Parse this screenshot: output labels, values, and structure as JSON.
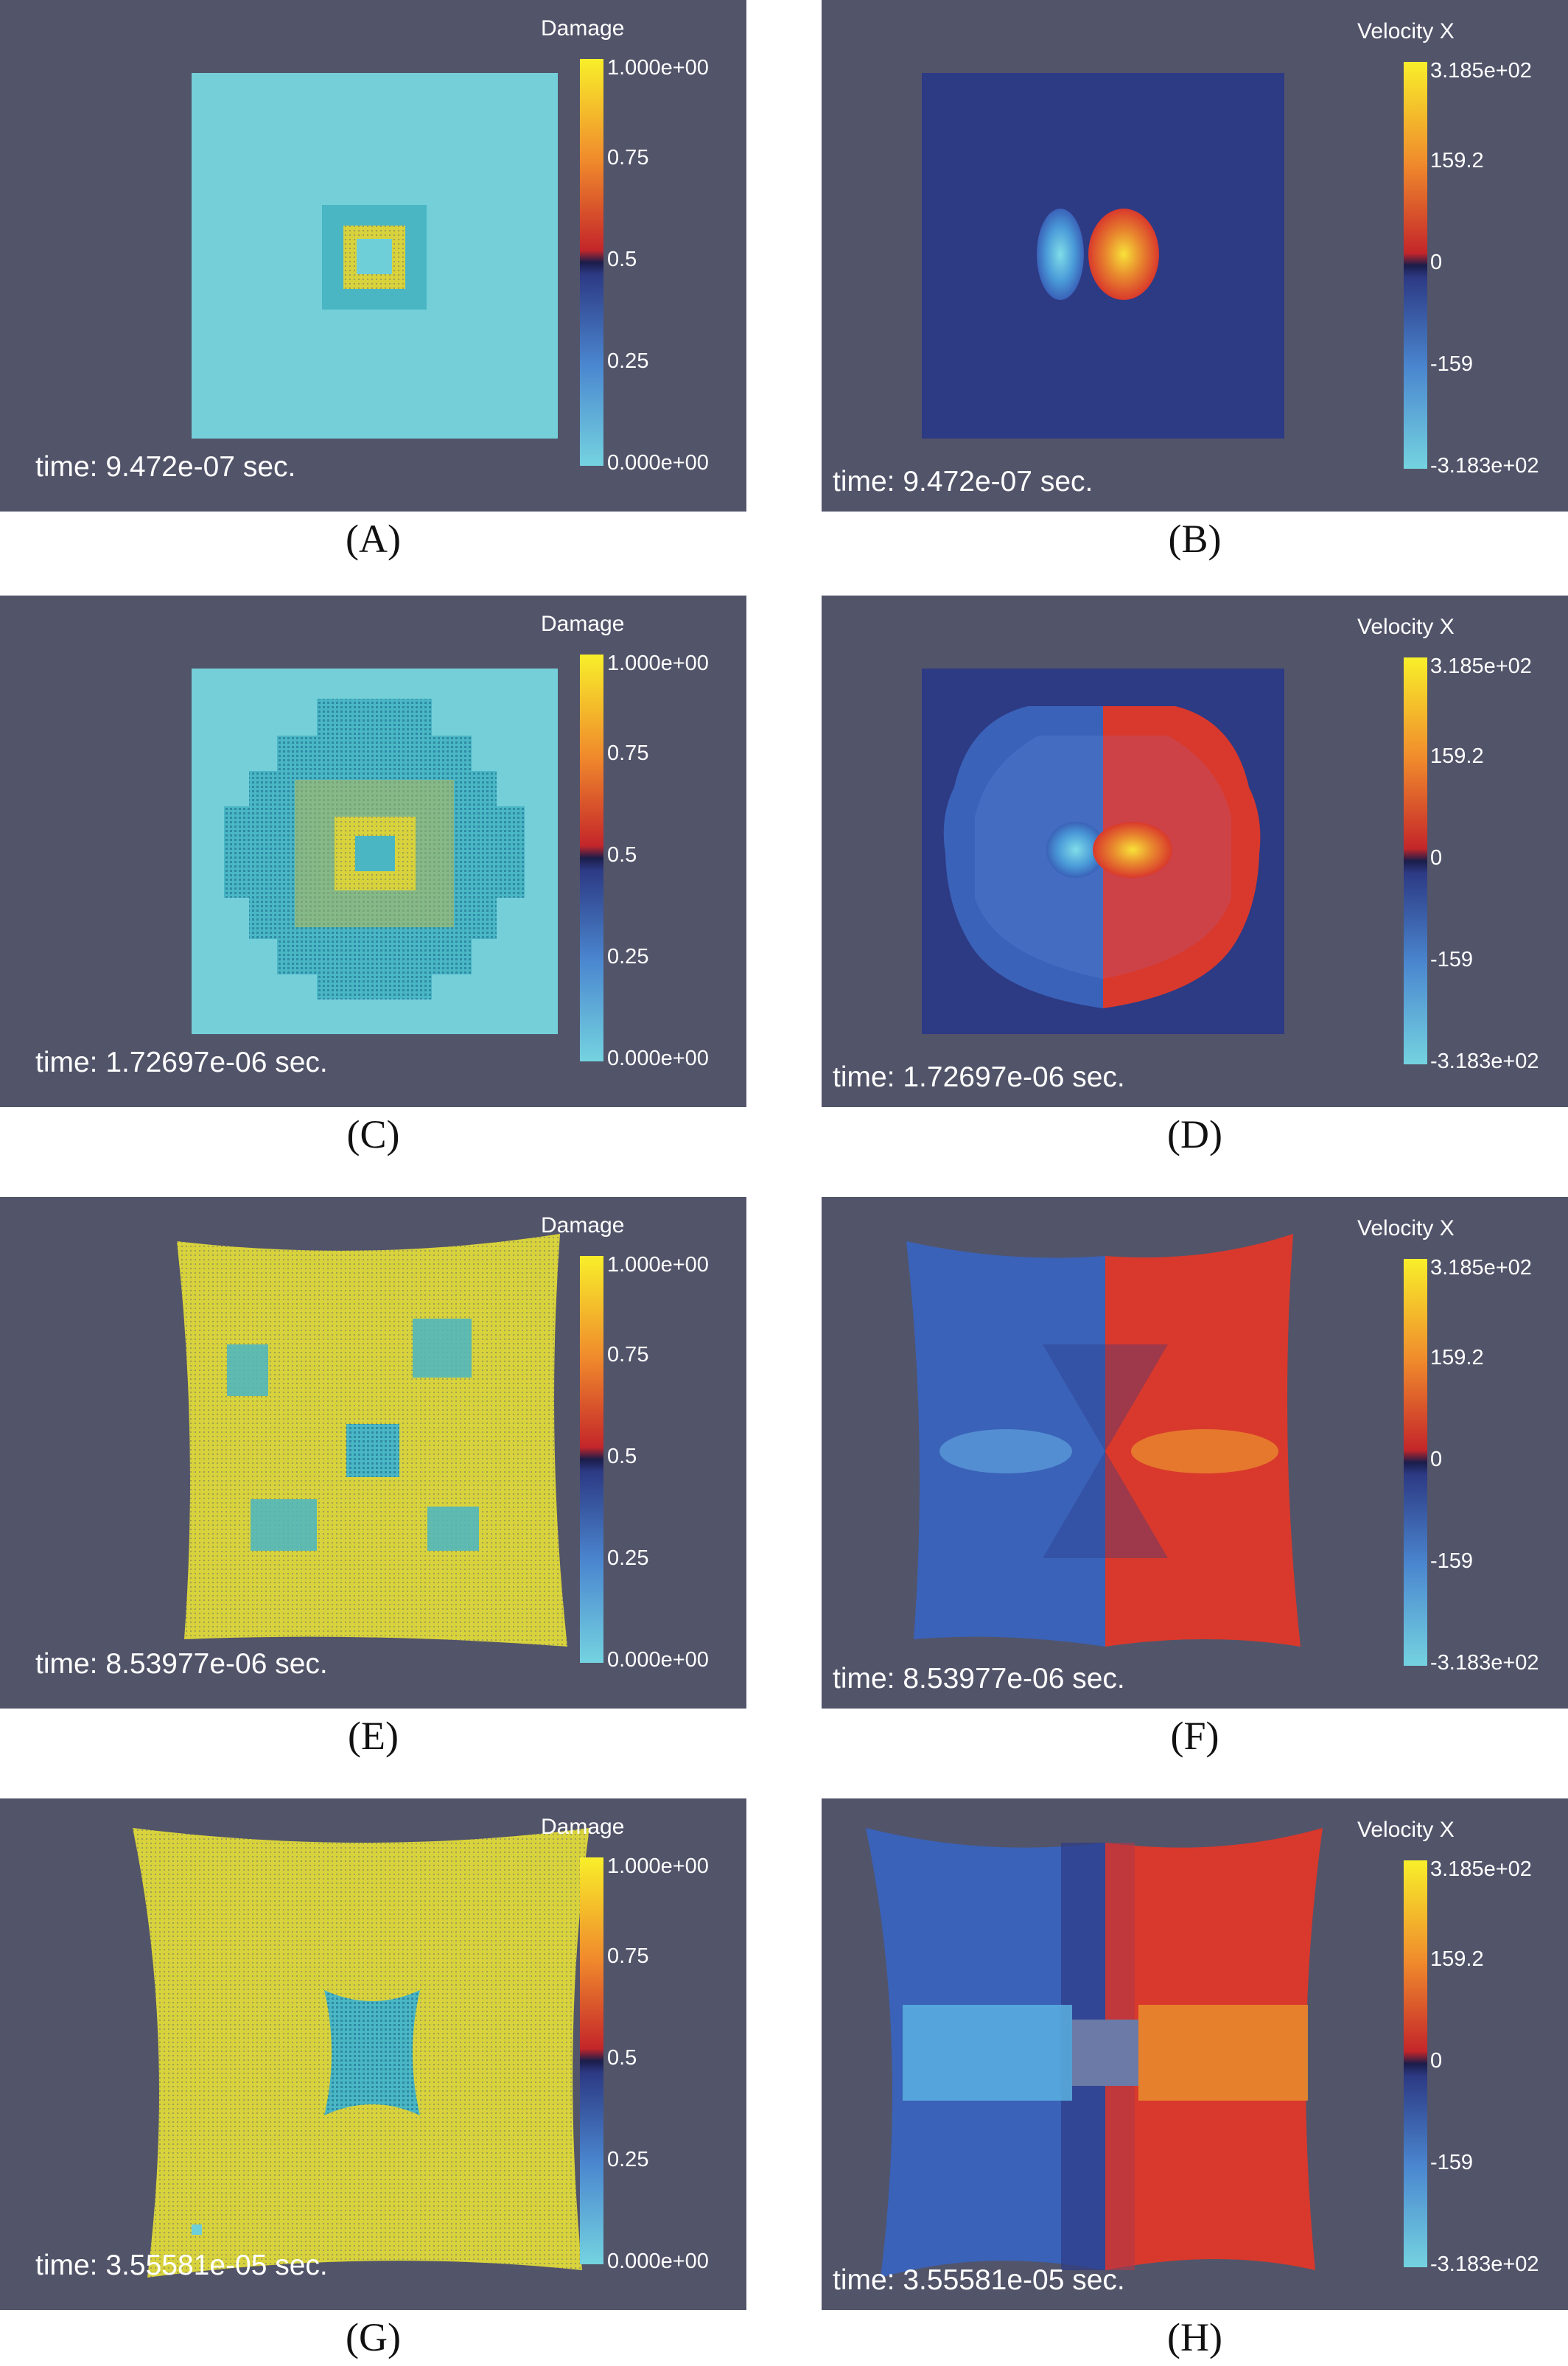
{
  "colors": {
    "background": "#52546a",
    "cyan": "#6fcfd9",
    "navy": "#2d3a84",
    "yellow": "#d8d23c",
    "red": "#d9392c",
    "blue": "#3a62b8"
  },
  "colorbars": {
    "damage": {
      "title": "Damage",
      "ticks": [
        "1.000e+00",
        "0.75",
        "0.5",
        "0.25",
        "0.000e+00"
      ]
    },
    "velocity": {
      "title": "Velocity X",
      "ticks": [
        "3.185e+02",
        "159.2",
        "0",
        "-159",
        "-3.183e+02"
      ]
    }
  },
  "panels": [
    {
      "label": "(A)",
      "time": "time: 9.472e-07 sec.",
      "field": "damage"
    },
    {
      "label": "(B)",
      "time": "time: 9.472e-07 sec.",
      "field": "velocity"
    },
    {
      "label": "(C)",
      "time": "time: 1.72697e-06 sec.",
      "field": "damage"
    },
    {
      "label": "(D)",
      "time": "time: 1.72697e-06 sec.",
      "field": "velocity"
    },
    {
      "label": "(E)",
      "time": "time: 8.53977e-06 sec.",
      "field": "damage"
    },
    {
      "label": "(F)",
      "time": "time: 8.53977e-06 sec.",
      "field": "velocity"
    },
    {
      "label": "(G)",
      "time": "time: 3.55581e-05 sec.",
      "field": "damage"
    },
    {
      "label": "(H)",
      "time": "time: 3.55581e-05 sec.",
      "field": "velocity"
    }
  ]
}
